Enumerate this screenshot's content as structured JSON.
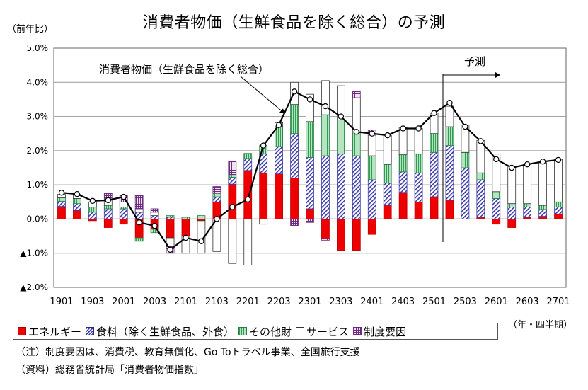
{
  "title": "消費者物価（生鮮食品を除く総合）の予測",
  "unit_label": "（前年比）",
  "period_label": "（年・四半期）",
  "annotation_line_label": "消費者物価（生鮮食品を除く総合）",
  "forecast_label": "予測",
  "legend": {
    "energy": "エネルギー",
    "food": "食料（除く生鮮食品、外食）",
    "other": "その他財",
    "service": "サービス",
    "institutional": "制度要因"
  },
  "notes": {
    "note1": "（注）制度要因は、消費税、教育無償化、Go Toトラベル事業、全国旅行支援",
    "note2": "（資料）総務省統計局「消費者物価指数」"
  },
  "colors": {
    "energy": "#ee0000",
    "food": "#3c3caa",
    "other": "#2e9e52",
    "service": "#ffffff",
    "institutional": "#6b2c7f",
    "line": "#000000"
  },
  "chart_data": {
    "type": "bar",
    "stacked": true,
    "title": "消費者物価（生鮮食品を除く総合）の予測",
    "ylabel": "（前年比）",
    "xlabel": "（年・四半期）",
    "ylim": [
      -2.0,
      5.0
    ],
    "yticks": [
      -2.0,
      -1.0,
      0.0,
      1.0,
      2.0,
      3.0,
      4.0,
      5.0
    ],
    "ytick_labels": [
      "▲2.0%",
      "▲1.0%",
      "0.0%",
      "1.0%",
      "2.0%",
      "3.0%",
      "4.0%",
      "5.0%"
    ],
    "grid": true,
    "legend_position": "bottom",
    "forecast_start": "2502",
    "categories": [
      "1901",
      "1902",
      "1903",
      "1904",
      "2001",
      "2002",
      "2003",
      "2004",
      "2101",
      "2102",
      "2103",
      "2104",
      "2201",
      "2202",
      "2203",
      "2204",
      "2301",
      "2302",
      "2303",
      "2304",
      "2401",
      "2402",
      "2403",
      "2404",
      "2501",
      "2502",
      "2503",
      "2504",
      "2601",
      "2602",
      "2603",
      "2604",
      "2701"
    ],
    "xtick_labels": [
      "1901",
      "1903",
      "2001",
      "2003",
      "2101",
      "2103",
      "2201",
      "2203",
      "2301",
      "2303",
      "2401",
      "2403",
      "2501",
      "2503",
      "2601",
      "2603",
      "2701"
    ],
    "series": [
      {
        "name": "エネルギー",
        "values": [
          0.37,
          0.25,
          -0.05,
          -0.25,
          -0.15,
          -0.55,
          -0.3,
          -0.55,
          -0.5,
          -0.05,
          0.5,
          1.02,
          1.42,
          1.35,
          1.32,
          1.2,
          0.3,
          -0.57,
          -0.92,
          -0.92,
          -0.45,
          0.4,
          0.78,
          0.5,
          0.65,
          0.55,
          0.0,
          0.05,
          -0.15,
          -0.25,
          0.05,
          0.08,
          0.15
        ]
      },
      {
        "name": "食料（除く生鮮食品、外食）",
        "values": [
          0.15,
          0.2,
          0.2,
          0.3,
          0.3,
          0.2,
          0.1,
          0.05,
          0.0,
          0.0,
          0.15,
          0.2,
          0.35,
          0.55,
          0.8,
          1.3,
          1.5,
          1.85,
          1.9,
          1.85,
          1.15,
          0.65,
          0.6,
          0.85,
          1.3,
          1.6,
          1.5,
          1.1,
          0.6,
          0.35,
          0.3,
          0.2,
          0.2
        ]
      },
      {
        "name": "その他財",
        "values": [
          0.1,
          0.15,
          0.15,
          0.1,
          0.05,
          -0.1,
          -0.1,
          0.05,
          0.05,
          0.1,
          0.1,
          0.08,
          0.15,
          0.25,
          0.6,
          0.85,
          1.05,
          1.2,
          1.0,
          0.7,
          0.7,
          0.55,
          0.5,
          0.55,
          0.55,
          0.55,
          0.45,
          0.2,
          0.2,
          0.1,
          0.1,
          0.12,
          0.15
        ]
      },
      {
        "name": "サービス",
        "values": [
          0.1,
          0.12,
          0.15,
          0.15,
          0.15,
          0.1,
          0.1,
          -0.25,
          -0.5,
          -0.95,
          -0.95,
          -1.3,
          -1.35,
          -0.15,
          0.1,
          0.65,
          0.8,
          1.0,
          1.0,
          1.0,
          0.6,
          0.85,
          0.8,
          0.75,
          0.6,
          0.6,
          0.8,
          0.95,
          1.1,
          1.1,
          1.15,
          1.25,
          1.25
        ]
      },
      {
        "name": "制度要因",
        "values": [
          0.0,
          0.0,
          0.0,
          0.2,
          0.2,
          0.4,
          0.1,
          -0.2,
          0.0,
          0.0,
          0.2,
          0.4,
          0.0,
          0.0,
          0.0,
          -0.2,
          -0.1,
          -0.05,
          0.0,
          0.2,
          0.15,
          0.0,
          0.0,
          0.0,
          0.0,
          0.0,
          0.0,
          0.0,
          0.0,
          0.0,
          0.0,
          0.0,
          0.0
        ]
      }
    ],
    "line": {
      "name": "消費者物価（生鮮食品を除く総合）",
      "values": [
        0.77,
        0.73,
        0.53,
        0.55,
        0.65,
        -0.1,
        -0.2,
        -0.9,
        -0.55,
        -0.65,
        0.0,
        0.35,
        0.57,
        2.15,
        2.75,
        3.73,
        3.5,
        3.3,
        3.0,
        2.55,
        2.5,
        2.45,
        2.65,
        2.65,
        3.1,
        3.4,
        2.7,
        2.28,
        1.75,
        1.5,
        1.6,
        1.68,
        1.73
      ]
    }
  }
}
